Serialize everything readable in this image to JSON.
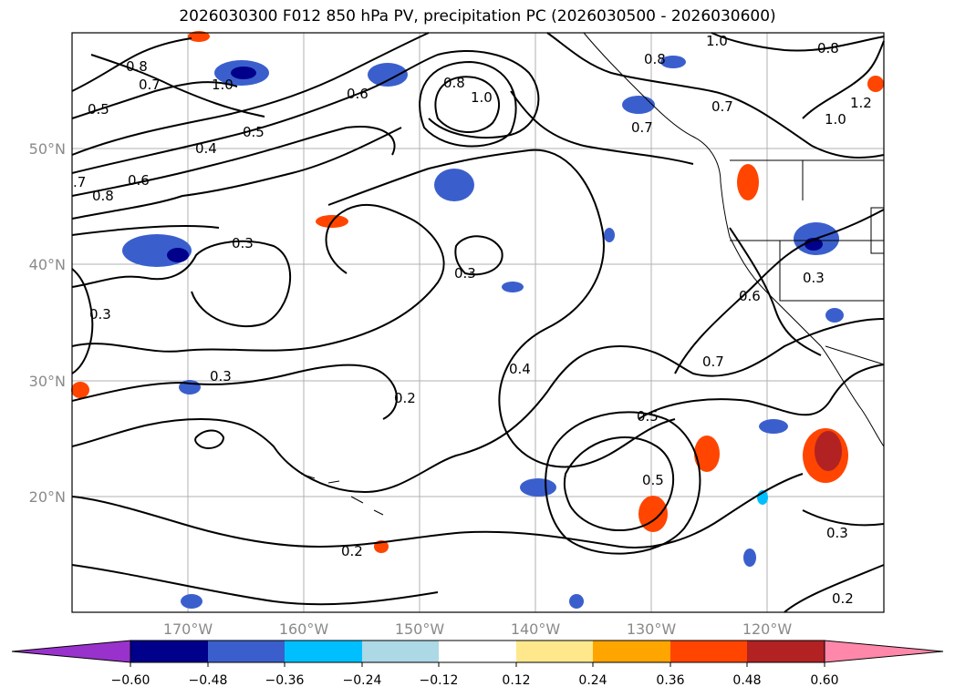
{
  "title": "2026030300 F012 850 hPa PV, precipitation PC (2026030500 - 2026030600)",
  "map": {
    "lat_labels": [
      "50°N",
      "40°N",
      "30°N",
      "20°N"
    ],
    "lon_labels": [
      "170°W",
      "160°W",
      "150°W",
      "140°W",
      "130°W",
      "120°W"
    ],
    "contour_labels": [
      "0.8",
      "0.7",
      "0.5",
      "1.0",
      "0.5",
      "0.8",
      "1.0",
      "0.4",
      "0.6",
      "0.8",
      ".7",
      "0.3",
      "0.3",
      "0.3",
      "0.3",
      "0.2",
      "0.4",
      "0.5",
      "0.5",
      "0.7",
      "0.6",
      "0.3",
      "0.3",
      "0.2",
      "0.2",
      "0.8",
      "1.0",
      "0.7",
      "0.7",
      "0.8",
      "1.0",
      "1.2",
      "0.6"
    ],
    "colors": {
      "contour": "#000000",
      "grid": "#b0b0b0",
      "neg_strong": "#00008b",
      "neg_mid": "#3a5fcd",
      "neg_light": "#00bfff",
      "neg_pale": "#add8e6",
      "pos_pale": "#ffe88c",
      "pos_light": "#ffa500",
      "pos_mid": "#ff4500",
      "pos_strong": "#b22222"
    }
  },
  "colorbar": {
    "tick_labels": [
      "−0.60",
      "−0.48",
      "−0.36",
      "−0.24",
      "−0.12",
      "0.12",
      "0.24",
      "0.36",
      "0.48",
      "0.60"
    ],
    "colors": [
      "#9932cc",
      "#00008b",
      "#3a5fcd",
      "#00bfff",
      "#add8e6",
      "#ffffff",
      "#ffe88c",
      "#ffa500",
      "#ff4500",
      "#b22222",
      "#ff88aa"
    ]
  }
}
